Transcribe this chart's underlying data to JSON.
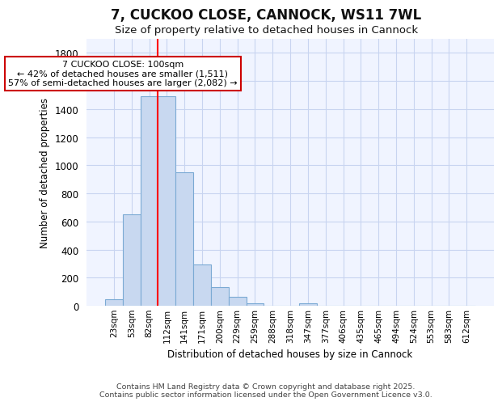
{
  "title": "7, CUCKOO CLOSE, CANNOCK, WS11 7WL",
  "subtitle": "Size of property relative to detached houses in Cannock",
  "xlabel": "Distribution of detached houses by size in Cannock",
  "ylabel": "Number of detached properties",
  "bar_color": "#c8d8f0",
  "bar_edge_color": "#7baad4",
  "background_color": "#f0f4ff",
  "grid_color": "#c8d4f0",
  "fig_background": "#ffffff",
  "categories": [
    "23sqm",
    "53sqm",
    "82sqm",
    "112sqm",
    "141sqm",
    "171sqm",
    "200sqm",
    "229sqm",
    "259sqm",
    "288sqm",
    "318sqm",
    "347sqm",
    "377sqm",
    "406sqm",
    "435sqm",
    "465sqm",
    "494sqm",
    "524sqm",
    "553sqm",
    "583sqm",
    "612sqm"
  ],
  "values": [
    45,
    650,
    1490,
    1490,
    950,
    295,
    135,
    65,
    20,
    0,
    0,
    15,
    0,
    0,
    0,
    0,
    0,
    0,
    0,
    0,
    0
  ],
  "ylim": [
    0,
    1900
  ],
  "yticks": [
    0,
    200,
    400,
    600,
    800,
    1000,
    1200,
    1400,
    1600,
    1800
  ],
  "annotation_text": "7 CUCKOO CLOSE: 100sqm\n← 42% of detached houses are smaller (1,511)\n57% of semi-detached houses are larger (2,082) →",
  "vline_x": 2.5,
  "vline_color": "red",
  "annotation_box_color": "#ffffff",
  "annotation_box_edge": "#cc0000",
  "footer_line1": "Contains HM Land Registry data © Crown copyright and database right 2025.",
  "footer_line2": "Contains public sector information licensed under the Open Government Licence v3.0."
}
